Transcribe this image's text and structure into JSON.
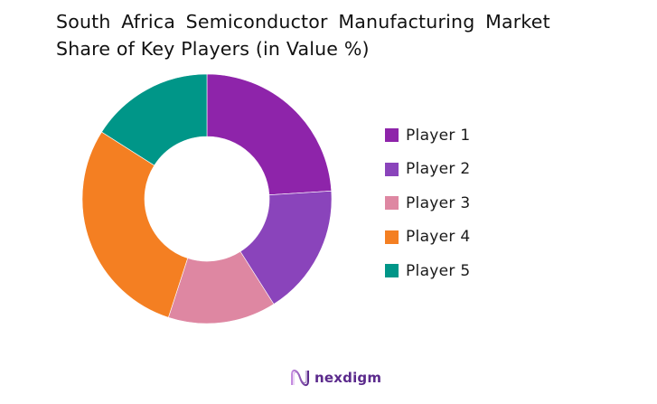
{
  "chart_data": {
    "type": "pie",
    "variant": "donut",
    "title": "South Africa Semiconductor Manufacturing Market Share of Key Players (in Value %)",
    "categories": [
      "Player 1",
      "Player 2",
      "Player 3",
      "Player 4",
      "Player 5"
    ],
    "values": [
      24,
      17,
      14,
      29,
      16
    ],
    "unit": "%",
    "colors": [
      "#8e24aa",
      "#8a44bb",
      "#de87a2",
      "#f47f22",
      "#009688"
    ],
    "legend_position": "right",
    "start_angle": "12 o'clock, clockwise"
  },
  "title": {
    "line1": "South Africa Semiconductor Manufacturing Market",
    "line2": "Share of Key Players (in Value %)"
  },
  "legend": {
    "items": [
      {
        "label": "Player 1",
        "color": "#8e24aa"
      },
      {
        "label": "Player 2",
        "color": "#8a44bb"
      },
      {
        "label": "Player 3",
        "color": "#de87a2"
      },
      {
        "label": "Player 4",
        "color": "#f47f22"
      },
      {
        "label": "Player 5",
        "color": "#009688"
      }
    ]
  },
  "branding": {
    "logo_text": "nexdigm",
    "color": "#5b2a8c"
  }
}
